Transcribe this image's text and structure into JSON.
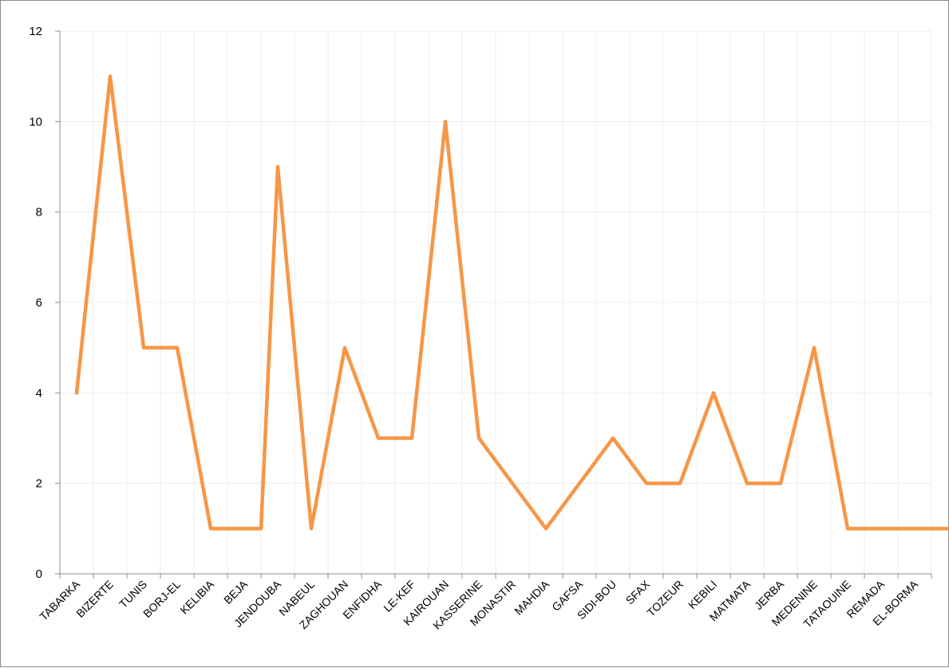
{
  "chart_data": {
    "type": "line",
    "title": "",
    "xlabel": "",
    "ylabel": "",
    "categories": [
      "TABARKA",
      "BIZERTE",
      "TUNIS",
      "BORJ-EL",
      "KELIBIA",
      "BEJA",
      "JENDOUBA",
      "NABEUL",
      "ZAGHOUAN",
      "ENFIDHA",
      "LE-KEF",
      "KAIROUAN",
      "KASSERINE",
      "MONASTIR",
      "MAHDIA",
      "GAFSA",
      "SIDI-BOU",
      "SFAX",
      "TOZEUR",
      "KEBILI",
      "MATMATA",
      "JERBA",
      "MEDENINE",
      "TATAOUINE",
      "REMADA",
      "EL-BORMA"
    ],
    "x_points": [
      0,
      1,
      2,
      2.5,
      3,
      4,
      5,
      5.5,
      6,
      7,
      8,
      9,
      9.5,
      10,
      11,
      12,
      13,
      14,
      15,
      16,
      17,
      18,
      19,
      20,
      21,
      22,
      23,
      23.5,
      24,
      25,
      26
    ],
    "y_points": [
      4,
      11,
      5,
      5,
      5,
      1,
      1,
      1,
      9,
      1,
      5,
      3,
      3,
      3,
      10,
      3,
      2,
      1,
      2,
      3,
      2,
      2,
      4,
      2,
      2,
      5,
      1,
      1,
      1,
      1,
      1
    ],
    "series": [
      {
        "color": "#f79646"
      }
    ],
    "yticks": [
      0,
      2,
      4,
      6,
      8,
      10,
      12
    ],
    "ylim": [
      0,
      12
    ],
    "grid": true,
    "legend": "none"
  }
}
